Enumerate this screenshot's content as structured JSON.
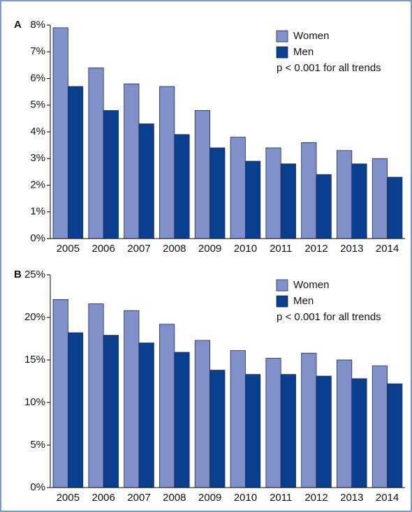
{
  "chart_data": [
    {
      "type": "bar",
      "label": "A",
      "categories": [
        "2005",
        "2006",
        "2007",
        "2008",
        "2009",
        "2010",
        "2011",
        "2012",
        "2013",
        "2014"
      ],
      "series": [
        {
          "name": "Women",
          "color": "#8090c8",
          "values": [
            7.9,
            6.4,
            5.8,
            5.7,
            4.8,
            3.8,
            3.4,
            3.6,
            3.3,
            3.0
          ]
        },
        {
          "name": "Men",
          "color": "#0a3f8f",
          "values": [
            5.7,
            4.8,
            4.3,
            3.9,
            3.4,
            2.9,
            2.8,
            2.4,
            2.8,
            2.3
          ]
        }
      ],
      "annotation": "p < 0.001 for all trends",
      "ylim": [
        0,
        8
      ],
      "yticks": [
        {
          "value": 0,
          "label": "0%"
        },
        {
          "value": 1,
          "label": "1%"
        },
        {
          "value": 2,
          "label": "2%"
        },
        {
          "value": 3,
          "label": "3%"
        },
        {
          "value": 4,
          "label": "4%"
        },
        {
          "value": 5,
          "label": "5%"
        },
        {
          "value": 6,
          "label": "6%"
        },
        {
          "value": 7,
          "label": "7%"
        },
        {
          "value": 8,
          "label": "8%"
        }
      ],
      "legend": "upper right"
    },
    {
      "type": "bar",
      "label": "B",
      "categories": [
        "2005",
        "2006",
        "2007",
        "2008",
        "2009",
        "2010",
        "2011",
        "2012",
        "2013",
        "2014"
      ],
      "series": [
        {
          "name": "Women",
          "color": "#8090c8",
          "values": [
            22.1,
            21.6,
            20.8,
            19.2,
            17.3,
            16.1,
            15.2,
            15.8,
            15.0,
            14.3
          ]
        },
        {
          "name": "Men",
          "color": "#0a3f8f",
          "values": [
            18.2,
            17.9,
            17.0,
            15.9,
            13.8,
            13.3,
            13.3,
            13.1,
            12.8,
            12.2
          ]
        }
      ],
      "annotation": "p < 0.001 for all trends",
      "ylim": [
        0,
        25
      ],
      "yticks": [
        {
          "value": 0,
          "label": "0%"
        },
        {
          "value": 5,
          "label": "5%"
        },
        {
          "value": 10,
          "label": "10%"
        },
        {
          "value": 15,
          "label": "15%"
        },
        {
          "value": 20,
          "label": "20%"
        },
        {
          "value": 25,
          "label": "25%"
        }
      ],
      "legend": "upper right"
    }
  ]
}
